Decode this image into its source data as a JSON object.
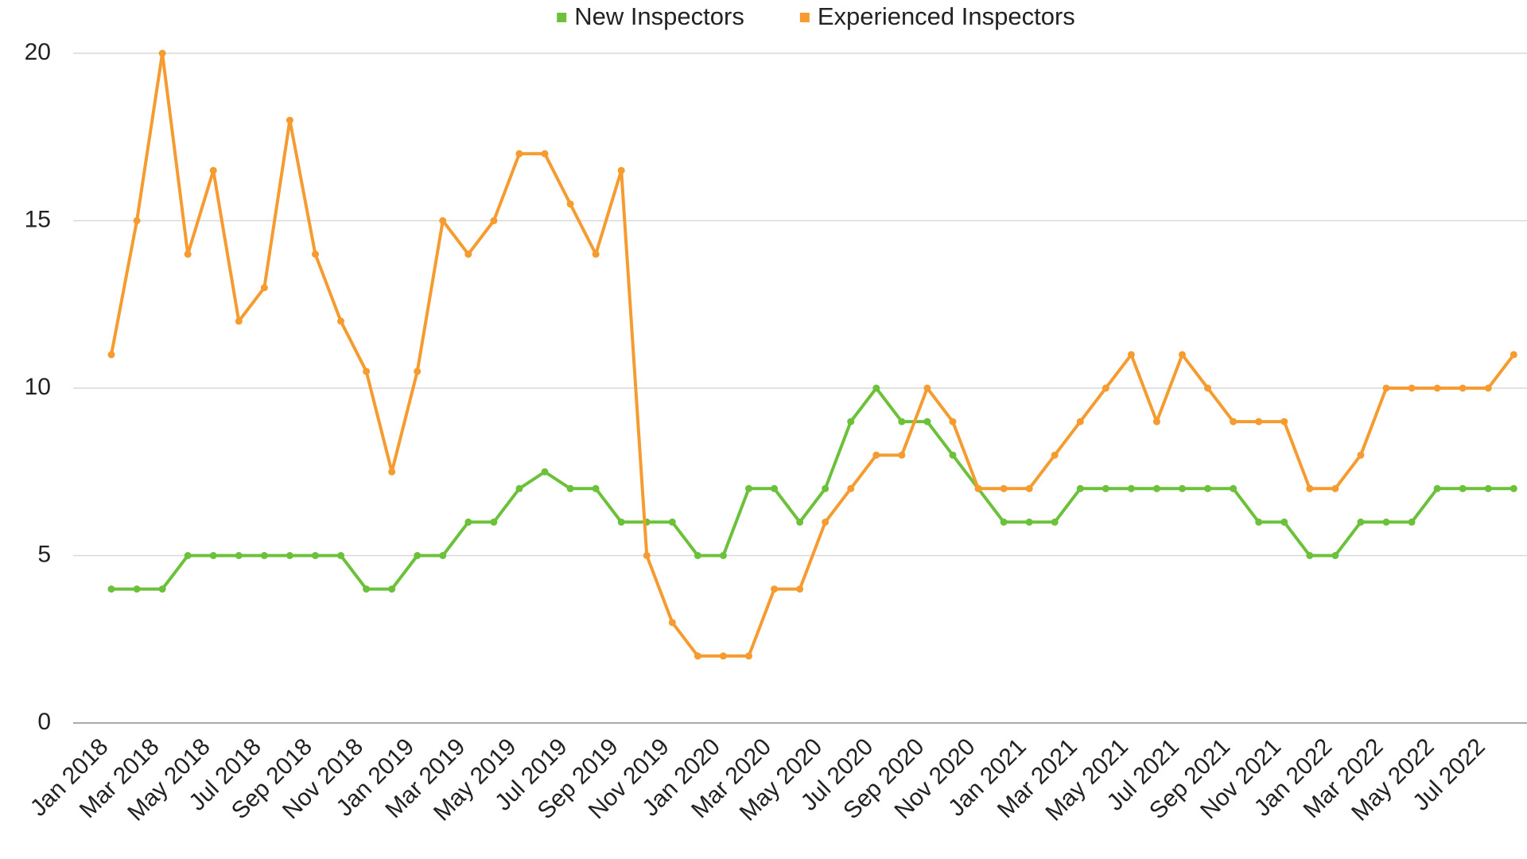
{
  "chart_data": {
    "type": "line",
    "categories": [
      "Jan 2018",
      null,
      "Mar 2018",
      null,
      "May 2018",
      null,
      "Jul 2018",
      null,
      "Sep 2018",
      null,
      "Nov 2018",
      null,
      "Jan 2019",
      null,
      "Mar 2019",
      null,
      "May 2019",
      null,
      "Jul 2019",
      null,
      "Sep 2019",
      null,
      "Nov 2019",
      null,
      "Jan 2020",
      null,
      "Mar 2020",
      null,
      "May 2020",
      null,
      "Jul 2020",
      null,
      "Sep 2020",
      null,
      "Nov 2020",
      null,
      "Jan 2021",
      null,
      "Mar 2021",
      null,
      "May 2021",
      null,
      "Jul 2021",
      null,
      "Sep 2021",
      null,
      "Nov 2021",
      null,
      "Jan 2022",
      null,
      "Mar 2022",
      null,
      "May 2022",
      null,
      "Jul 2022",
      null
    ],
    "series": [
      {
        "name": "New Inspectors",
        "color": "#6cc13a",
        "values": [
          4,
          4,
          4,
          5,
          5,
          5,
          5,
          5,
          5,
          5,
          4,
          4,
          5,
          5,
          6,
          6,
          7,
          7.5,
          7,
          7,
          6,
          6,
          6,
          5,
          5,
          7,
          7,
          6,
          7,
          9,
          10,
          9,
          9,
          8,
          7,
          6,
          6,
          6,
          7,
          7,
          7,
          7,
          7,
          7,
          7,
          6,
          6,
          5,
          5,
          6,
          6,
          6,
          7,
          7,
          7,
          7
        ]
      },
      {
        "name": "Experienced Inspectors",
        "color": "#f59b2f",
        "values": [
          11,
          15,
          20,
          14,
          16.5,
          12,
          13,
          18,
          14,
          12,
          10.5,
          7.5,
          10.5,
          15,
          14,
          15,
          17,
          17,
          15.5,
          14,
          16.5,
          5,
          3,
          2,
          2,
          2,
          4,
          4,
          6,
          7,
          8,
          8,
          10,
          9,
          7,
          7,
          7,
          8,
          9,
          10,
          11,
          9,
          11,
          10,
          9,
          9,
          9,
          7,
          7,
          8,
          10,
          10,
          10,
          10,
          10,
          11
        ]
      }
    ],
    "ylim": [
      0,
      20
    ],
    "yticks": [
      0,
      5,
      10,
      15,
      20
    ],
    "grid": true,
    "legend": "top"
  }
}
